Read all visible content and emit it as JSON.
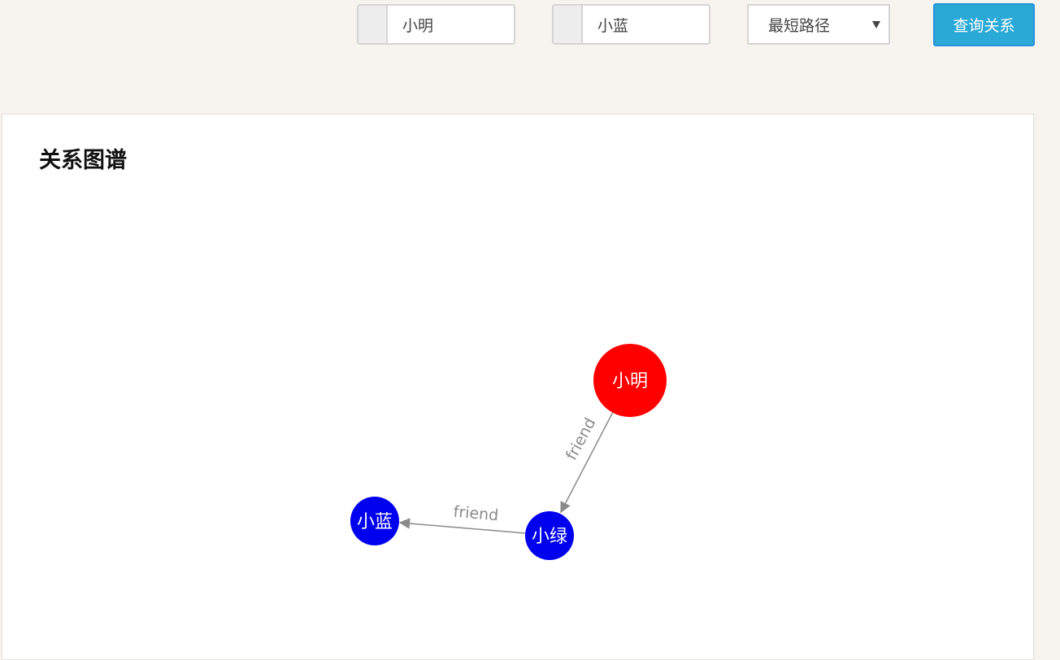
{
  "toolbar": {
    "from_input": {
      "value": "小明",
      "placeholder": ""
    },
    "to_input": {
      "value": "小蓝",
      "placeholder": ""
    },
    "relation_select": {
      "selected": "最短路径"
    },
    "query_button": {
      "label": "查询关系"
    }
  },
  "panel": {
    "title": "关系图谱"
  },
  "graph": {
    "nodes": [
      {
        "id": "xiaoming",
        "label": "小明",
        "color": "#ff0000"
      },
      {
        "id": "xiaolv",
        "label": "小绿",
        "color": "#0000ee"
      },
      {
        "id": "xiaolan",
        "label": "小蓝",
        "color": "#0000ee"
      }
    ],
    "edges": [
      {
        "from": "xiaoming",
        "to": "xiaolv",
        "label": "friend",
        "color": "#8a8a8a"
      },
      {
        "from": "xiaolv",
        "to": "xiaolan",
        "label": "friend",
        "color": "#8a8a8a"
      }
    ]
  }
}
